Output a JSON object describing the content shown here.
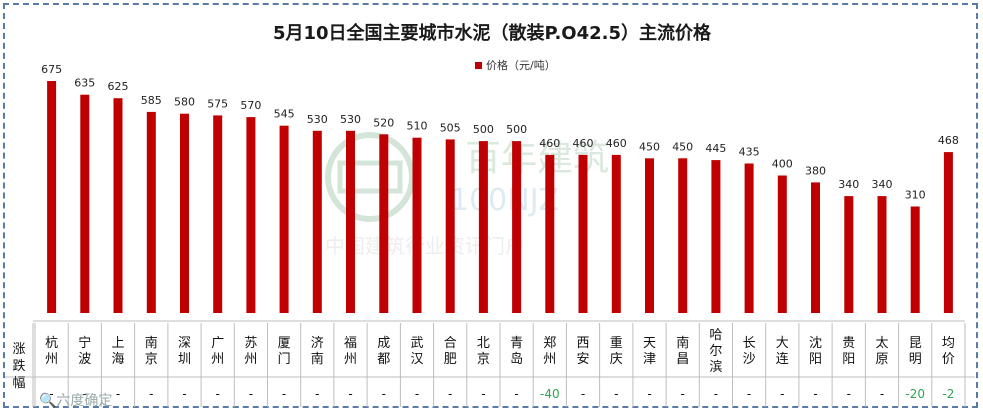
{
  "chart_data": {
    "type": "bar",
    "title": "5月10日全国主要城市水泥（散装P.O42.5）主流价格",
    "legend": "价格（元/吨）",
    "legend_position": "top-right",
    "series": [
      {
        "name": "价格（元/吨）",
        "color": "#c00000",
        "values": [
          675,
          635,
          625,
          585,
          580,
          575,
          570,
          545,
          530,
          530,
          520,
          510,
          505,
          500,
          500,
          460,
          460,
          460,
          450,
          450,
          445,
          435,
          400,
          380,
          340,
          340,
          310,
          468
        ]
      }
    ],
    "categories": [
      "杭州",
      "宁波",
      "上海",
      "南京",
      "深圳",
      "广州",
      "苏州",
      "厦门",
      "济南",
      "福州",
      "成都",
      "武汉",
      "合肥",
      "北京",
      "青岛",
      "郑州",
      "西安",
      "重庆",
      "天津",
      "南昌",
      "哈尔滨",
      "长沙",
      "大连",
      "沈阳",
      "贵阳",
      "太原",
      "昆明",
      "均价"
    ],
    "change_row_label": "涨跌幅",
    "changes": [
      "-",
      "-",
      "-",
      "-",
      "-",
      "-",
      "-",
      "-",
      "-",
      "-",
      "-",
      "-",
      "-",
      "-",
      "-",
      "-40",
      "-",
      "-",
      "-",
      "-",
      "-",
      "-",
      "-",
      "-",
      "-",
      "-",
      "-20",
      "-2"
    ],
    "ylim": [
      0,
      700
    ],
    "grid": false
  }
}
